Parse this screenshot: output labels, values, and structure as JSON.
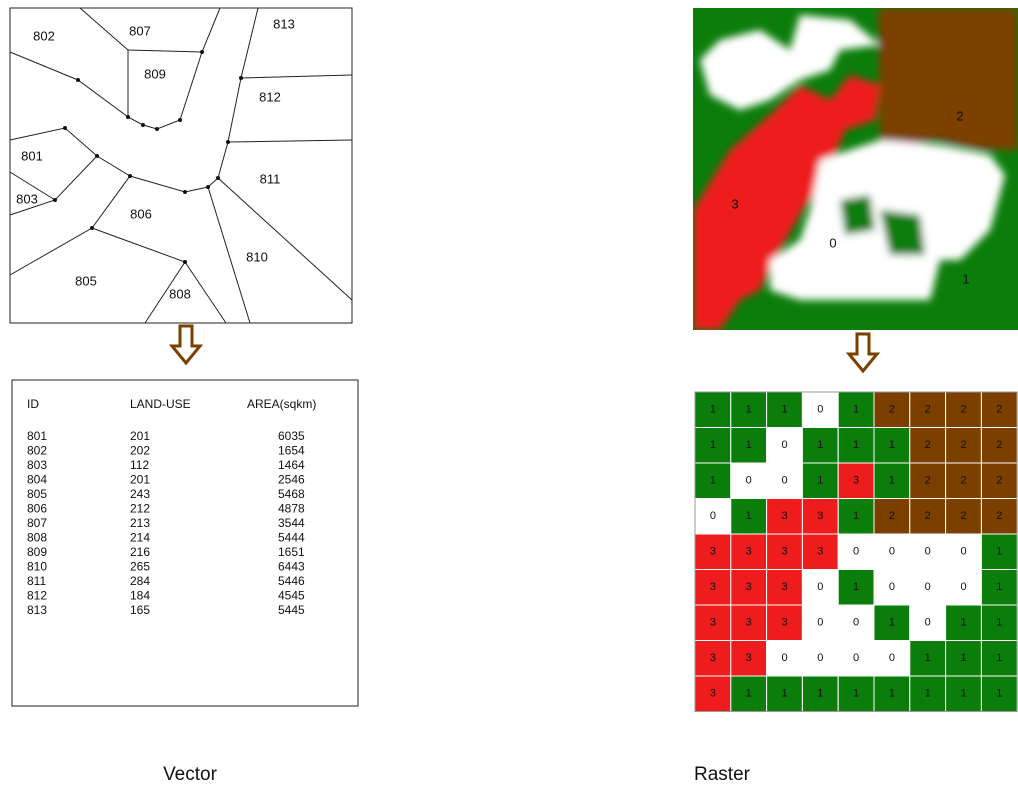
{
  "vector": {
    "map_labels": [
      "802",
      "807",
      "813",
      "809",
      "812",
      "801",
      "811",
      "803",
      "806",
      "810",
      "805",
      "808"
    ],
    "table": {
      "header": [
        "ID",
        "LAND-USE",
        "AREA(sqkm)"
      ],
      "rows": [
        [
          "801",
          "201",
          "6035"
        ],
        [
          "802",
          "202",
          "1654"
        ],
        [
          "803",
          "112",
          "1464"
        ],
        [
          "804",
          "201",
          "2546"
        ],
        [
          "805",
          "243",
          "5468"
        ],
        [
          "806",
          "212",
          "4878"
        ],
        [
          "807",
          "213",
          "3544"
        ],
        [
          "808",
          "214",
          "5444"
        ],
        [
          "809",
          "216",
          "1651"
        ],
        [
          "810",
          "265",
          "6443"
        ],
        [
          "811",
          "284",
          "5446"
        ],
        [
          "812",
          "184",
          "4545"
        ],
        [
          "813",
          "165",
          "5445"
        ]
      ]
    },
    "caption": "Vector"
  },
  "raster": {
    "image_labels": [
      "2",
      "3",
      "0",
      "1"
    ],
    "grid": [
      [
        1,
        1,
        1,
        0,
        1,
        2,
        2,
        2,
        2
      ],
      [
        1,
        1,
        0,
        1,
        1,
        1,
        2,
        2,
        2
      ],
      [
        1,
        0,
        0,
        1,
        3,
        1,
        2,
        2,
        2
      ],
      [
        0,
        1,
        3,
        3,
        1,
        2,
        2,
        2,
        2
      ],
      [
        3,
        3,
        3,
        3,
        0,
        0,
        0,
        0,
        1
      ],
      [
        3,
        3,
        3,
        0,
        1,
        0,
        0,
        0,
        1
      ],
      [
        3,
        3,
        3,
        0,
        0,
        1,
        0,
        1,
        1
      ],
      [
        3,
        3,
        0,
        0,
        0,
        0,
        1,
        1,
        1
      ],
      [
        3,
        1,
        1,
        1,
        1,
        1,
        1,
        1,
        1
      ]
    ],
    "class_colors": [
      "#ffffff",
      "#0b7d0b",
      "#7b3f00",
      "#ee1c1c"
    ],
    "caption": "Raster"
  }
}
